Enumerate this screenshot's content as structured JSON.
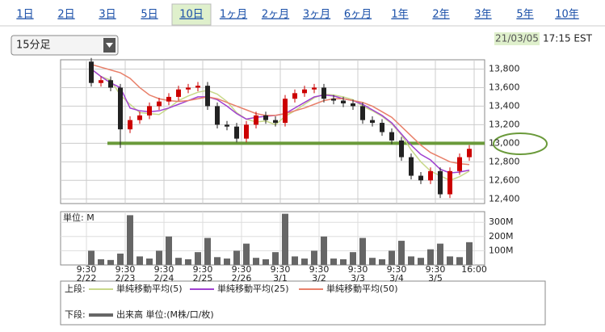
{
  "tabs": [
    "1日",
    "2日",
    "3日",
    "5日",
    "10日",
    "1ヶ月",
    "2ヶ月",
    "3ヶ月",
    "6ヶ月",
    "1年",
    "2年",
    "3年",
    "5年",
    "10年"
  ],
  "selected_tab": 4,
  "interval": "15分足",
  "timestamp": {
    "date": "21/03/05",
    "time": "17:15 EST"
  },
  "chart_data": {
    "type": "candlestick",
    "up_color": "#cc0000",
    "down_color": "#222222",
    "open": [
      13880,
      13650,
      13680,
      13600,
      13150,
      13250,
      13300,
      13400,
      13450,
      13500,
      13580,
      13600,
      13620,
      13400,
      13200,
      13180,
      13050,
      13200,
      13300,
      13250,
      13220,
      13480,
      13540,
      13580,
      13600,
      13480,
      13460,
      13430,
      13400,
      13250,
      13220,
      13120,
      13030,
      12850,
      12650,
      12600,
      12700,
      12450,
      12700,
      12850
    ],
    "high": [
      13920,
      13720,
      13720,
      13640,
      13290,
      13340,
      13440,
      13490,
      13540,
      13620,
      13640,
      13660,
      13660,
      13440,
      13240,
      13220,
      13240,
      13340,
      13340,
      13290,
      13520,
      13580,
      13620,
      13640,
      13640,
      13520,
      13500,
      13470,
      13440,
      13290,
      13260,
      13160,
      13070,
      12890,
      12690,
      12740,
      12740,
      12740,
      12890,
      12980
    ],
    "low": [
      13610,
      13610,
      13560,
      12950,
      13110,
      13210,
      13260,
      13360,
      13410,
      13460,
      13540,
      13560,
      13360,
      13160,
      13140,
      13010,
      13010,
      13160,
      13210,
      13180,
      13180,
      13440,
      13500,
      13540,
      13440,
      13420,
      13390,
      13360,
      13210,
      13180,
      13080,
      12990,
      12810,
      12610,
      12560,
      12560,
      12410,
      12410,
      12660,
      12810
    ],
    "close": [
      13650,
      13680,
      13600,
      13150,
      13250,
      13300,
      13400,
      13450,
      13500,
      13580,
      13600,
      13620,
      13400,
      13200,
      13180,
      13050,
      13200,
      13300,
      13250,
      13220,
      13480,
      13540,
      13580,
      13600,
      13480,
      13460,
      13430,
      13400,
      13250,
      13220,
      13120,
      13030,
      12850,
      12650,
      12600,
      12700,
      12450,
      12700,
      12850,
      12940
    ],
    "ylim": [
      12350,
      13900
    ],
    "yticks": [
      {
        "value": 12400,
        "label": "12,400"
      },
      {
        "value": 12600,
        "label": "12,600"
      },
      {
        "value": 12800,
        "label": "12,800"
      },
      {
        "value": 13000,
        "label": "13,000"
      },
      {
        "value": 13200,
        "label": "13,200"
      },
      {
        "value": 13400,
        "label": "13,400"
      },
      {
        "value": 13600,
        "label": "13,600"
      },
      {
        "value": 13800,
        "label": "13,800"
      }
    ],
    "xticks": [
      {
        "value": 0,
        "label": "9:30",
        "date": "2/22"
      },
      {
        "value": 4,
        "label": "9:30",
        "date": "2/23"
      },
      {
        "value": 8,
        "label": "9:30",
        "date": "2/24"
      },
      {
        "value": 12,
        "label": "9:30",
        "date": "2/25"
      },
      {
        "value": 16,
        "label": "9:30",
        "date": "2/26"
      },
      {
        "value": 20,
        "label": "9:30",
        "date": "3/1"
      },
      {
        "value": 24,
        "label": "9:30",
        "date": "3/2"
      },
      {
        "value": 28,
        "label": "9:30",
        "date": "3/3"
      },
      {
        "value": 32,
        "label": "9:30",
        "date": "3/4"
      },
      {
        "value": 36,
        "label": "9:30",
        "date": "3/5"
      },
      {
        "value": 40,
        "label": "16:00"
      }
    ],
    "reference_line": {
      "value": 13000,
      "color": "#6a9a3a"
    },
    "moving_averages": [
      {
        "name": "単純移動平均(5)",
        "color": "#c8d88a",
        "values": [
          13800,
          13720,
          13680,
          13520,
          13420,
          13330,
          13320,
          13310,
          13380,
          13460,
          13510,
          13550,
          13570,
          13530,
          13450,
          13330,
          13260,
          13230,
          13240,
          13200,
          13290,
          13350,
          13420,
          13490,
          13530,
          13520,
          13500,
          13470,
          13400,
          13350,
          13290,
          13210,
          13090,
          12930,
          12800,
          12700,
          12650,
          12600,
          12640,
          12700
        ]
      },
      {
        "name": "単純移動平均(25)",
        "color": "#a040d0",
        "values": [
          13800,
          13720,
          13650,
          13600,
          13380,
          13350,
          13340,
          13350,
          13380,
          13420,
          13460,
          13500,
          13500,
          13470,
          13400,
          13320,
          13260,
          13280,
          13290,
          13300,
          13320,
          13380,
          13440,
          13500,
          13520,
          13510,
          13480,
          13460,
          13420,
          13360,
          13300,
          13220,
          13100,
          12980,
          12880,
          12820,
          12720,
          12680,
          12690,
          12710
        ]
      },
      {
        "name": "単純移動平均(50)",
        "color": "#e8806a",
        "values": [
          13850,
          13820,
          13790,
          13760,
          13700,
          13600,
          13520,
          13480,
          13460,
          13450,
          13460,
          13480,
          13500,
          13480,
          13440,
          13400,
          13360,
          13320,
          13300,
          13300,
          13320,
          13350,
          13380,
          13420,
          13460,
          13480,
          13480,
          13460,
          13440,
          13400,
          13340,
          13280,
          13180,
          13080,
          12980,
          12900,
          12850,
          12800,
          12780,
          12770
        ]
      }
    ],
    "volume": {
      "unit_label": "単位: M",
      "name": "出来高 単位:(M株/口/枚)",
      "color": "#666666",
      "ylim": [
        0,
        375
      ],
      "yticks": [
        {
          "value": 100,
          "label": "100M"
        },
        {
          "value": 200,
          "label": "200M"
        },
        {
          "value": 300,
          "label": "300M"
        }
      ],
      "values": [
        100,
        40,
        35,
        80,
        350,
        60,
        45,
        100,
        200,
        50,
        40,
        90,
        190,
        55,
        45,
        100,
        150,
        50,
        40,
        90,
        360,
        60,
        45,
        100,
        200,
        45,
        40,
        90,
        190,
        50,
        40,
        100,
        170,
        60,
        50,
        110,
        150,
        60,
        55,
        160
      ]
    },
    "legend": {
      "upper_label": "上段:",
      "lower_label": "下段:"
    }
  }
}
